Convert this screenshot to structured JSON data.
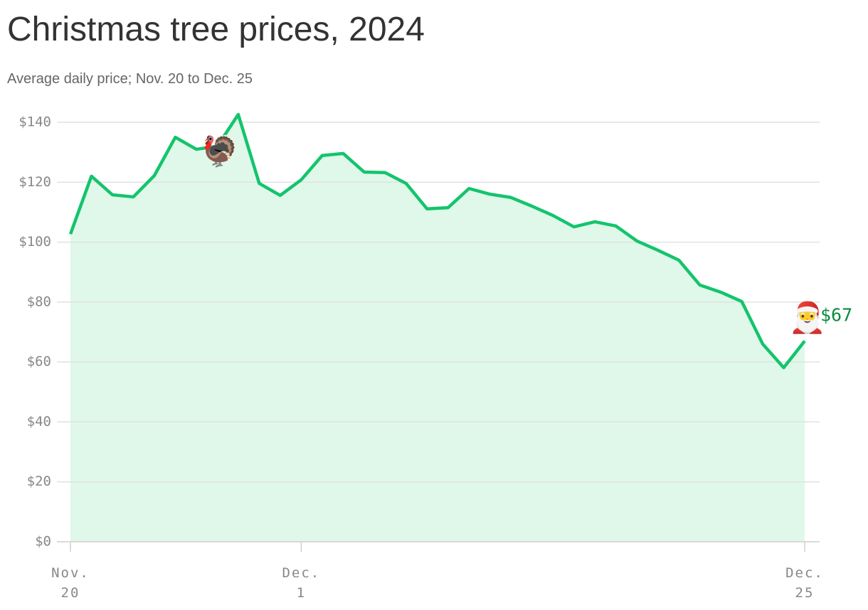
{
  "chart_data": {
    "type": "line",
    "title": "Christmas tree prices, 2024",
    "subtitle": "Average daily price; Nov. 20 to Dec. 25",
    "categories": [
      "Nov. 20",
      null,
      null,
      null,
      null,
      null,
      null,
      null,
      null,
      null,
      null,
      "Dec. 1",
      null,
      null,
      null,
      null,
      null,
      null,
      null,
      null,
      null,
      null,
      null,
      null,
      null,
      null,
      null,
      null,
      null,
      null,
      null,
      null,
      null,
      null,
      null,
      "Dec. 25"
    ],
    "series": [
      {
        "name": "Average daily price",
        "color": "#14c46c",
        "fill": "#dff8ea",
        "values": [
          102.7,
          122,
          115.8,
          115.1,
          122.2,
          135,
          131,
          132,
          142.6,
          119.6,
          115.6,
          120.8,
          128.9,
          129.6,
          123.4,
          123.2,
          119.6,
          111.1,
          111.5,
          117.9,
          116,
          114.9,
          112,
          108.9,
          105.1,
          106.8,
          105.4,
          100.4,
          97.3,
          94,
          85.7,
          83.3,
          80.2,
          66,
          58.1,
          67
        ],
        "value_labels": [
          null,
          null,
          null,
          null,
          null,
          null,
          null,
          null,
          null,
          null,
          null,
          null,
          null,
          null,
          null,
          null,
          null,
          null,
          null,
          null,
          null,
          null,
          null,
          null,
          null,
          null,
          null,
          null,
          null,
          null,
          null,
          null,
          null,
          null,
          null,
          "$67"
        ]
      }
    ],
    "annotations": [
      "🦃",
      "🎅"
    ],
    "ylim": [
      0,
      140
    ],
    "yticks": [
      {
        "value": 0,
        "label": "$0"
      },
      {
        "value": 20,
        "label": "$20"
      },
      {
        "value": 40,
        "label": "$40"
      },
      {
        "value": 60,
        "label": "$60"
      },
      {
        "value": 80,
        "label": "$80"
      },
      {
        "value": 100,
        "label": "$100"
      },
      {
        "value": 120,
        "label": "$120"
      },
      {
        "value": 140,
        "label": "$140"
      }
    ],
    "grid": true
  }
}
